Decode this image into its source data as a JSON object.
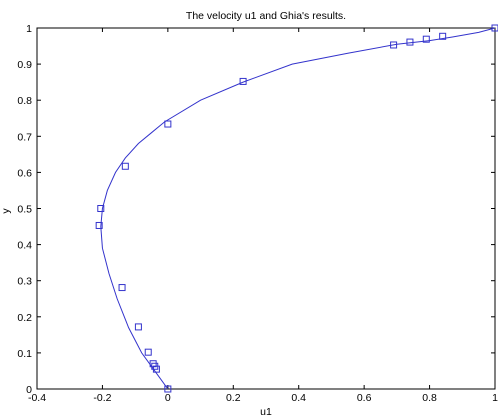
{
  "chart_data": {
    "type": "line",
    "title": "The velocity u1 and Ghia's results.",
    "xlabel": "u1",
    "ylabel": "y",
    "xlim": [
      -0.4,
      1
    ],
    "ylim": [
      0,
      1
    ],
    "xticks": [
      "-0.4",
      "-0.2",
      "0",
      "0.2",
      "0.4",
      "0.6",
      "0.8",
      "1"
    ],
    "yticks": [
      "0",
      "0.1",
      "0.2",
      "0.3",
      "0.4",
      "0.5",
      "0.6",
      "0.7",
      "0.8",
      "0.9",
      "1"
    ],
    "grid": false,
    "line_color": "#3333cc",
    "marker_color": "#3333cc",
    "series": [
      {
        "style": "line",
        "x": [
          0,
          -0.04,
          -0.08,
          -0.12,
          -0.155,
          -0.18,
          -0.2,
          -0.205,
          -0.2,
          -0.185,
          -0.16,
          -0.13,
          -0.09,
          -0.05,
          -0.01,
          0.1,
          0.23,
          0.38,
          0.55,
          0.7,
          0.8,
          0.87,
          0.95,
          1
        ],
        "y": [
          0,
          0.05,
          0.1,
          0.17,
          0.25,
          0.32,
          0.39,
          0.45,
          0.5,
          0.55,
          0.6,
          0.64,
          0.68,
          0.71,
          0.74,
          0.8,
          0.85,
          0.9,
          0.93,
          0.955,
          0.965,
          0.975,
          0.988,
          1
        ]
      },
      {
        "style": "markers",
        "marker": "square",
        "x": [
          0,
          -0.035,
          -0.04,
          -0.045,
          -0.06,
          -0.09,
          -0.14,
          -0.21,
          -0.205,
          -0.13,
          0,
          0.23,
          0.69,
          0.74,
          0.79,
          0.84,
          1
        ],
        "y": [
          0,
          0.055,
          0.063,
          0.07,
          0.102,
          0.172,
          0.281,
          0.453,
          0.5,
          0.617,
          0.734,
          0.852,
          0.953,
          0.961,
          0.969,
          0.977,
          1
        ]
      }
    ]
  }
}
